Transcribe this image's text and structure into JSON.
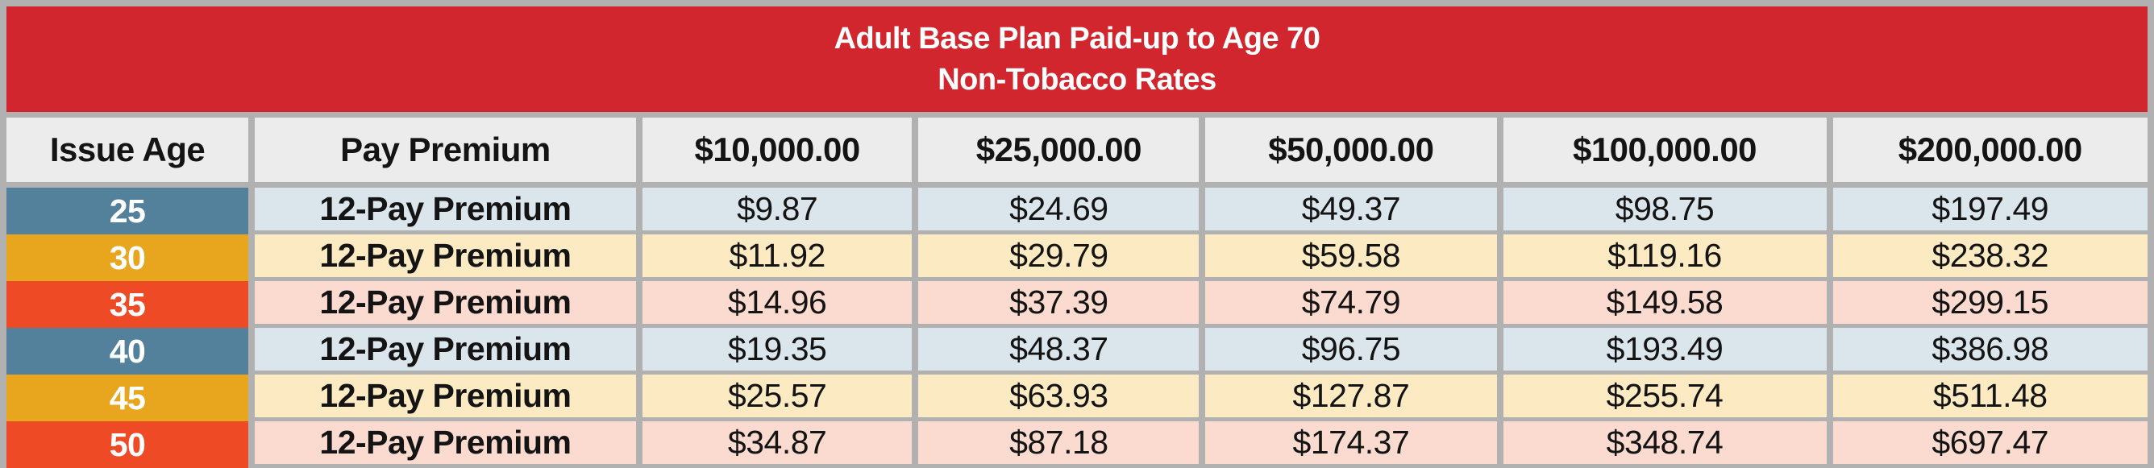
{
  "title": {
    "line1": "Adult Base Plan Paid-up to Age 70",
    "line2": "Non-Tobacco Rates"
  },
  "colors": {
    "banner_red": "#d2262e",
    "border_gray": "#b1b1b1",
    "header_bg": "#ececec",
    "age_blue": "#53809b",
    "age_gold": "#e8a51e",
    "age_orange_red": "#ee4a26",
    "row_blue": "#dbe5ec",
    "row_cream": "#fcebc2",
    "row_pink": "#fbdbd0"
  },
  "table": {
    "columns": [
      "Issue Age",
      "Pay Premium",
      "$10,000.00",
      "$25,000.00",
      "$50,000.00",
      "$100,000.00",
      "$200,000.00"
    ],
    "rows": [
      {
        "age": "25",
        "premium_type": "12-Pay Premium",
        "values": [
          "$9.87",
          "$24.69",
          "$49.37",
          "$98.75",
          "$197.49"
        ],
        "age_color_key": "age_blue",
        "row_color_key": "row_blue"
      },
      {
        "age": "30",
        "premium_type": "12-Pay Premium",
        "values": [
          "$11.92",
          "$29.79",
          "$59.58",
          "$119.16",
          "$238.32"
        ],
        "age_color_key": "age_gold",
        "row_color_key": "row_cream"
      },
      {
        "age": "35",
        "premium_type": "12-Pay Premium",
        "values": [
          "$14.96",
          "$37.39",
          "$74.79",
          "$149.58",
          "$299.15"
        ],
        "age_color_key": "age_orange_red",
        "row_color_key": "row_pink"
      },
      {
        "age": "40",
        "premium_type": "12-Pay Premium",
        "values": [
          "$19.35",
          "$48.37",
          "$96.75",
          "$193.49",
          "$386.98"
        ],
        "age_color_key": "age_blue",
        "row_color_key": "row_blue"
      },
      {
        "age": "45",
        "premium_type": "12-Pay Premium",
        "values": [
          "$25.57",
          "$63.93",
          "$127.87",
          "$255.74",
          "$511.48"
        ],
        "age_color_key": "age_gold",
        "row_color_key": "row_cream"
      },
      {
        "age": "50",
        "premium_type": "12-Pay Premium",
        "values": [
          "$34.87",
          "$87.18",
          "$174.37",
          "$348.74",
          "$697.47"
        ],
        "age_color_key": "age_orange_red",
        "row_color_key": "row_pink"
      }
    ]
  }
}
